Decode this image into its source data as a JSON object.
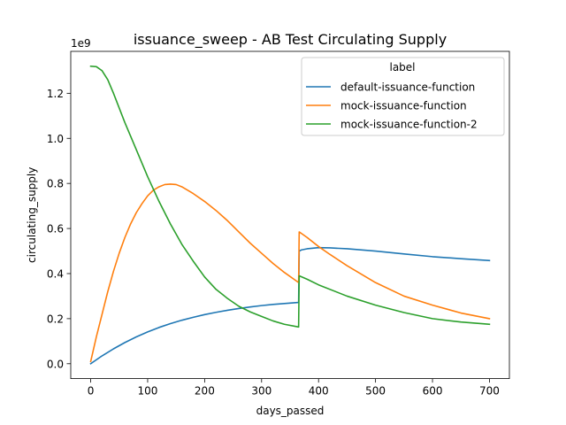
{
  "chart_data": {
    "type": "line",
    "title": "issuance_sweep - AB Test Circulating Supply",
    "xlabel": "days_passed",
    "ylabel": "circulating_supply",
    "y_scale_label": "1e9",
    "y_multiplier": 1000000000,
    "xlim": [
      -35,
      735
    ],
    "ylim": [
      -0.066,
      1.386
    ],
    "x_ticks": [
      0,
      100,
      200,
      300,
      400,
      500,
      600,
      700
    ],
    "y_ticks": [
      0.0,
      0.2,
      0.4,
      0.6,
      0.8,
      1.0,
      1.2
    ],
    "x_tick_labels": [
      "0",
      "100",
      "200",
      "300",
      "400",
      "500",
      "600",
      "700"
    ],
    "y_tick_labels": [
      "0.0",
      "0.2",
      "0.4",
      "0.6",
      "0.8",
      "1.0",
      "1.2"
    ],
    "grid": false,
    "legend": {
      "title": "label",
      "placement": "upper right"
    },
    "series": [
      {
        "name": "default-issuance-function",
        "color": "#1f77b4",
        "x": [
          0,
          20,
          40,
          60,
          80,
          100,
          120,
          140,
          160,
          180,
          200,
          220,
          240,
          260,
          280,
          300,
          320,
          340,
          365,
          366,
          370,
          380,
          400,
          420,
          450,
          500,
          550,
          600,
          650,
          700
        ],
        "y": [
          0.0,
          0.035,
          0.066,
          0.094,
          0.119,
          0.141,
          0.161,
          0.178,
          0.193,
          0.206,
          0.218,
          0.228,
          0.237,
          0.245,
          0.252,
          0.258,
          0.263,
          0.267,
          0.272,
          0.5,
          0.505,
          0.51,
          0.515,
          0.514,
          0.51,
          0.5,
          0.487,
          0.475,
          0.466,
          0.458
        ]
      },
      {
        "name": "mock-issuance-function",
        "color": "#ff7f0e",
        "x": [
          0,
          10,
          20,
          30,
          40,
          50,
          60,
          70,
          80,
          90,
          100,
          110,
          120,
          130,
          140,
          150,
          160,
          180,
          200,
          220,
          240,
          260,
          280,
          300,
          320,
          340,
          365,
          366,
          380,
          400,
          420,
          450,
          500,
          550,
          600,
          650,
          700
        ],
        "y": [
          0.01,
          0.12,
          0.22,
          0.32,
          0.41,
          0.49,
          0.56,
          0.62,
          0.67,
          0.71,
          0.745,
          0.77,
          0.785,
          0.795,
          0.797,
          0.795,
          0.785,
          0.755,
          0.72,
          0.68,
          0.635,
          0.585,
          0.535,
          0.49,
          0.445,
          0.405,
          0.36,
          0.585,
          0.56,
          0.52,
          0.485,
          0.435,
          0.36,
          0.3,
          0.26,
          0.225,
          0.2
        ]
      },
      {
        "name": "mock-issuance-function-2",
        "color": "#2ca02c",
        "x": [
          0,
          10,
          20,
          30,
          40,
          60,
          80,
          100,
          120,
          140,
          160,
          180,
          200,
          220,
          240,
          260,
          280,
          300,
          320,
          340,
          365,
          366,
          380,
          400,
          450,
          500,
          550,
          600,
          650,
          700
        ],
        "y": [
          1.32,
          1.318,
          1.3,
          1.26,
          1.2,
          1.07,
          0.95,
          0.83,
          0.72,
          0.62,
          0.53,
          0.455,
          0.385,
          0.33,
          0.29,
          0.255,
          0.23,
          0.21,
          0.19,
          0.175,
          0.163,
          0.39,
          0.375,
          0.35,
          0.3,
          0.26,
          0.227,
          0.2,
          0.185,
          0.175
        ]
      }
    ]
  }
}
